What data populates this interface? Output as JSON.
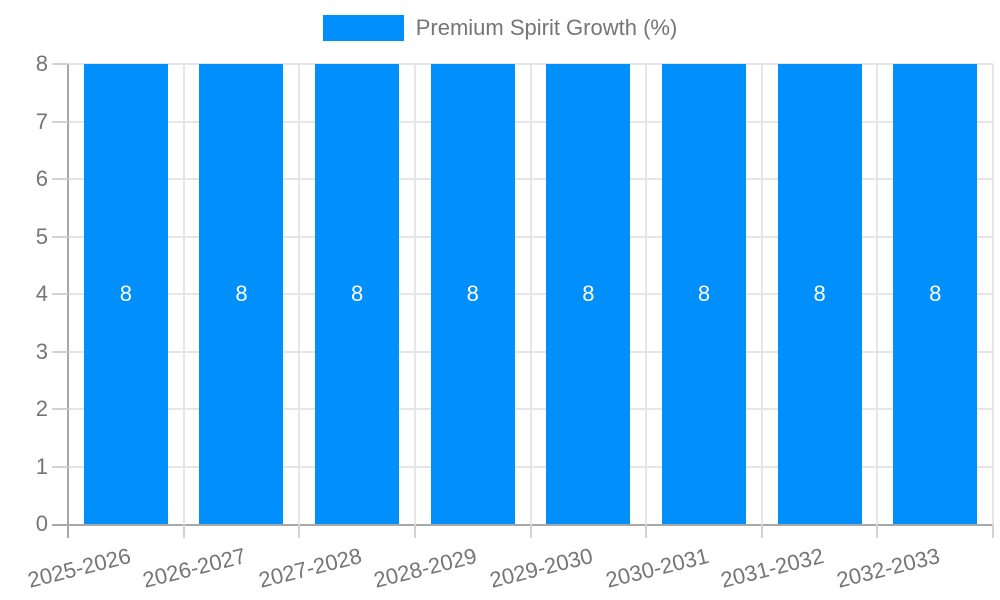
{
  "chart_data": {
    "type": "bar",
    "title": "Premium Spirit Growth (%)",
    "categories": [
      "2025-2026",
      "2026-2027",
      "2027-2028",
      "2028-2029",
      "2029-2030",
      "2030-2031",
      "2031-2032",
      "2032-2033"
    ],
    "series": [
      {
        "name": "Premium Spirit Growth (%)",
        "values": [
          8,
          8,
          8,
          8,
          8,
          8,
          8,
          8
        ]
      }
    ],
    "data_labels": [
      "8",
      "8",
      "8",
      "8",
      "8",
      "8",
      "8",
      "8"
    ],
    "ylim": [
      0,
      8
    ],
    "ytick_labels": [
      "0",
      "1",
      "2",
      "3",
      "4",
      "5",
      "6",
      "7",
      "8"
    ],
    "grid": true,
    "legend_position": "top",
    "colors": {
      "bar": "#008FFB",
      "data_label": "#ffffff",
      "axis_text": "#757575",
      "gridline": "#e6e6e6",
      "axis_line": "#a8a8a8",
      "tick": "#d2d2d2"
    }
  }
}
